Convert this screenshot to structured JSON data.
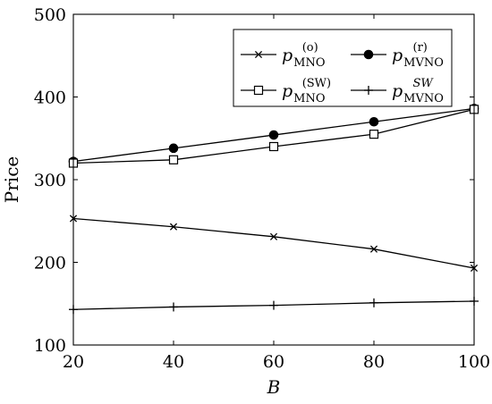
{
  "chart_data": {
    "type": "line",
    "x": [
      20,
      40,
      60,
      80,
      100
    ],
    "xlabel": "B",
    "ylabel": "Price",
    "xlim": [
      20,
      100
    ],
    "ylim": [
      100,
      500
    ],
    "xticks": [
      "20",
      "40",
      "60",
      "80",
      "100"
    ],
    "yticks": [
      "100",
      "200",
      "300",
      "400",
      "500"
    ],
    "grid": false,
    "legend_placement": "top-right",
    "series": [
      {
        "name": "p_MNO^(o)",
        "legend": {
          "base": "p",
          "sup": "(o)",
          "sub": "MNO"
        },
        "marker": "x",
        "values": [
          253,
          243,
          231,
          216,
          193
        ]
      },
      {
        "name": "p_MVNO^(r)",
        "legend": {
          "base": "p",
          "sup": "(r)",
          "sub": "MVNO"
        },
        "marker": "circle",
        "values": [
          322,
          338,
          354,
          370,
          386
        ]
      },
      {
        "name": "p_MNO^(SW)",
        "legend": {
          "base": "p",
          "sup": "(SW)",
          "sub": "MNO"
        },
        "marker": "square",
        "values": [
          320,
          324,
          340,
          355,
          385
        ]
      },
      {
        "name": "p_MVNO^SW",
        "legend": {
          "base": "p",
          "sup": "SW",
          "sub": "MVNO"
        },
        "marker": "plus",
        "values": [
          143,
          146,
          148,
          151,
          153
        ]
      }
    ]
  }
}
